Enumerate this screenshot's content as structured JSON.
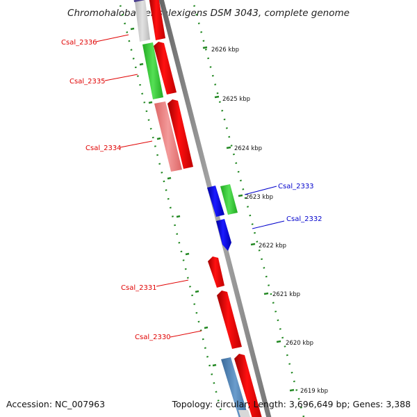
{
  "title": "Chromohalobacter salexigens DSM 3043, complete genome",
  "accession": "Accession: NC_007963",
  "summary": "Topology: circular; Length: 3,696,649 bp; Genes: 3,388",
  "kbp_ticks": [
    "2626 kbp",
    "2625 kbp",
    "2624 kbp",
    "2623 kbp",
    "2622 kbp",
    "2621 kbp",
    "2620 kbp",
    "2619 kbp"
  ],
  "gene_labels": [
    {
      "name": "Csal_2336",
      "color": "#e00000"
    },
    {
      "name": "Csal_2335",
      "color": "#e00000"
    },
    {
      "name": "Csal_2334",
      "color": "#e00000"
    },
    {
      "name": "Csal_2333",
      "color": "#0000cc"
    },
    {
      "name": "Csal_2332",
      "color": "#0000cc"
    },
    {
      "name": "Csal_2331",
      "color": "#e00000"
    },
    {
      "name": "Csal_2330",
      "color": "#e00000"
    }
  ],
  "colors": {
    "backbone": "#888888",
    "cds": "#ee0000",
    "blue_cds": "#0000ee",
    "green_feature": "#33cc33",
    "pink_feature": "#ee7777",
    "steel_feature": "#4477aa",
    "grey_feature": "#c8c8c8",
    "purple_feature": "#4b3f8f",
    "dotted_ring": "#228822"
  }
}
